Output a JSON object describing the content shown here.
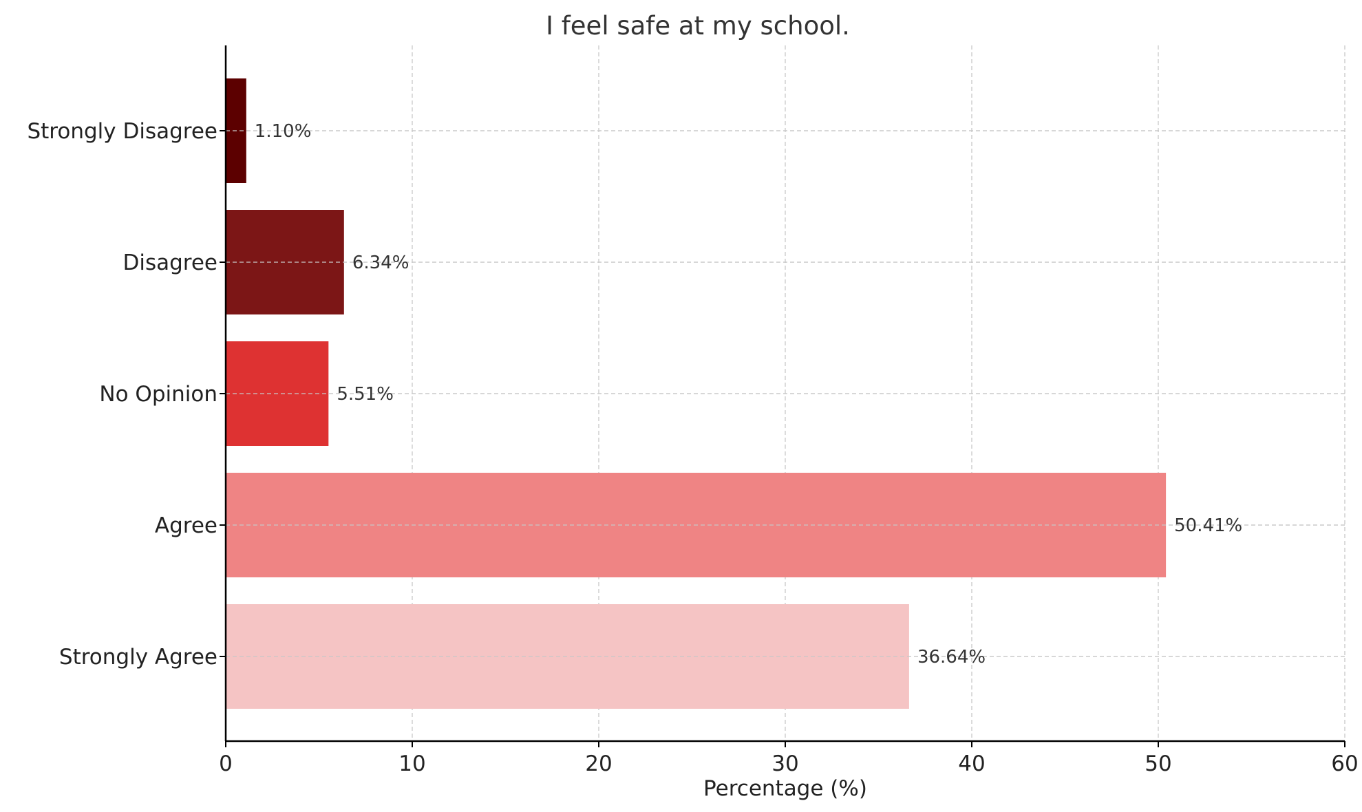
{
  "chart_data": {
    "type": "bar",
    "orientation": "horizontal",
    "title": "I feel safe at my school.",
    "xlabel": "Percentage (%)",
    "ylabel": "",
    "xlim": [
      0,
      60
    ],
    "xticks": [
      0,
      10,
      20,
      30,
      40,
      50,
      60
    ],
    "grid": true,
    "categories": [
      "Strongly Agree",
      "Agree",
      "No Opinion",
      "Disagree",
      "Strongly Disagree"
    ],
    "values": [
      36.64,
      50.41,
      5.51,
      6.34,
      1.1
    ],
    "data_labels": [
      "36.64%",
      "50.41%",
      "5.51%",
      "6.34%",
      "1.10%"
    ],
    "colors": [
      "#f5c4c4",
      "#ef8484",
      "#de3232",
      "#7c1616",
      "#5c0000"
    ]
  }
}
